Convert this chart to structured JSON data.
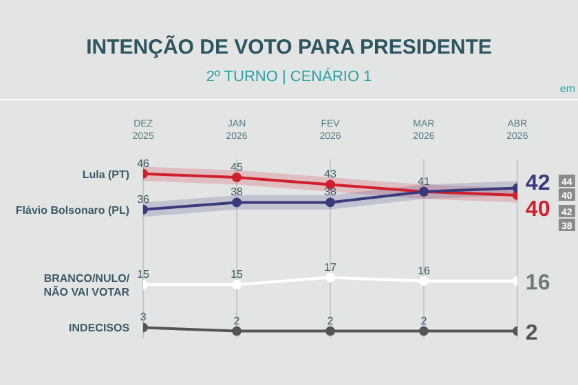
{
  "chart_data": {
    "type": "line",
    "title": "INTENÇÃO DE VOTO PARA PRESIDENTE",
    "subtitle": "2º TURNO | CENÁRIO 1",
    "annotations": [
      "em",
      "44",
      "40",
      "42",
      "38"
    ],
    "categories": [
      "DEZ\n2025",
      "JAN\n2026",
      "FEV\n2026",
      "MAR\n2026",
      "ABR\n2026"
    ],
    "series": [
      {
        "name": "Lula (PT)",
        "color": "#d0202e",
        "values": [
          46,
          45,
          43,
          41,
          40
        ],
        "value_labels": [
          "46",
          "45",
          "43",
          "41",
          "40"
        ],
        "lower": [
          44,
          43,
          41,
          39,
          38
        ],
        "upper": [
          48,
          47,
          45,
          43,
          42
        ]
      },
      {
        "name": "Flávio Bolsonaro (PL)",
        "color": "#3b3a7c",
        "values": [
          36,
          38,
          38,
          41,
          42
        ],
        "value_labels": [
          "36",
          "38",
          "38",
          null,
          "42"
        ],
        "lower": [
          34,
          36,
          36,
          39,
          40
        ],
        "upper": [
          38,
          40,
          40,
          43,
          44
        ]
      },
      {
        "name": "BRANCO/NULO/\nNÃO VAI VOTAR",
        "color": "#ffffff",
        "values": [
          15,
          15,
          17,
          16,
          16
        ],
        "value_labels": [
          "15",
          "15",
          "17",
          "16",
          "16"
        ]
      },
      {
        "name": "INDECISOS",
        "color": "#555555",
        "values": [
          3,
          2,
          2,
          2,
          2
        ],
        "value_labels": [
          "3",
          "2",
          "2",
          "2",
          "2"
        ]
      }
    ],
    "ylim": [
      0,
      50
    ],
    "tick_labels": "x",
    "grid": "x",
    "marker": "circle",
    "line_style": "solid"
  }
}
